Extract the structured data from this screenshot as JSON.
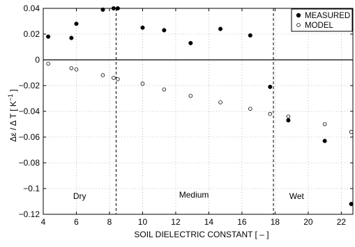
{
  "chart_data": {
    "type": "scatter",
    "title": "",
    "xlabel": "SOIL DIELECTRIC CONSTANT [ – ]",
    "ylabel_main": "Δε / Δ T   [ K",
    "ylabel_sup": "−1",
    "ylabel_end": " ]",
    "xlim": [
      4,
      22.7
    ],
    "ylim": [
      -0.12,
      0.04
    ],
    "xticks": [
      4,
      6,
      8,
      10,
      12,
      14,
      16,
      18,
      20,
      22
    ],
    "yticks": [
      0.04,
      0.02,
      0,
      -0.02,
      -0.04,
      -0.06,
      -0.08,
      -0.1,
      -0.12
    ],
    "ytick_labels": [
      "0.04",
      "0.02",
      "0",
      "−0.02",
      "−0.04",
      "−0.06",
      "−0.08",
      "−0.1",
      "−0.12"
    ],
    "grid": true,
    "legend_position": "top-right",
    "zero_line": true,
    "vlines": [
      8.4,
      17.9
    ],
    "regions": [
      {
        "label": "Dry",
        "x": 6.2,
        "y": -0.108
      },
      {
        "label": "Medium",
        "x": 13.1,
        "y": -0.107
      },
      {
        "label": "Wet",
        "x": 19.3,
        "y": -0.108
      }
    ],
    "series": [
      {
        "name": "MEASURED",
        "marker": "filled",
        "points": [
          [
            4.3,
            0.018
          ],
          [
            5.7,
            0.017
          ],
          [
            6.0,
            0.028
          ],
          [
            7.6,
            0.039
          ],
          [
            8.25,
            0.04
          ],
          [
            8.5,
            0.04
          ],
          [
            10.0,
            0.025
          ],
          [
            11.3,
            0.023
          ],
          [
            12.9,
            0.013
          ],
          [
            14.7,
            0.024
          ],
          [
            16.5,
            0.019
          ],
          [
            17.7,
            -0.021
          ],
          [
            18.8,
            -0.047
          ],
          [
            21.0,
            -0.063
          ],
          [
            22.6,
            -0.112
          ]
        ]
      },
      {
        "name": "MODEL",
        "marker": "open",
        "points": [
          [
            4.3,
            -0.003
          ],
          [
            5.7,
            -0.0065
          ],
          [
            6.0,
            -0.0075
          ],
          [
            7.6,
            -0.012
          ],
          [
            8.25,
            -0.014
          ],
          [
            8.5,
            -0.015
          ],
          [
            10.0,
            -0.0185
          ],
          [
            11.3,
            -0.023
          ],
          [
            12.9,
            -0.028
          ],
          [
            14.7,
            -0.033
          ],
          [
            16.5,
            -0.038
          ],
          [
            17.7,
            -0.042
          ],
          [
            18.8,
            -0.044
          ],
          [
            21.0,
            -0.05
          ],
          [
            22.6,
            -0.056
          ]
        ]
      }
    ]
  }
}
